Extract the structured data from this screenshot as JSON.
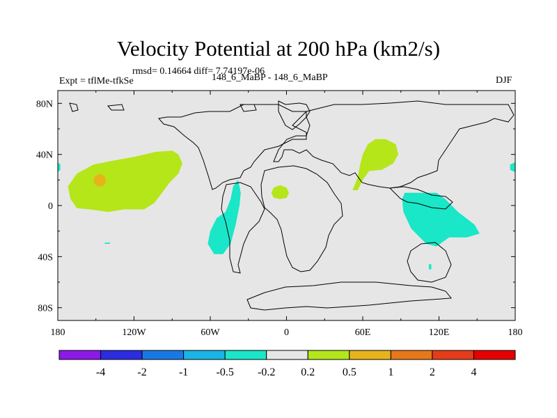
{
  "chart_data": {
    "type": "heatmap",
    "title": "Velocity Potential at 200 hPa (km2/s)",
    "stats_line": "rmsd= 0.14664  diff= 7.74197e-06",
    "left_label": "Expt = tflMe-tfkSe",
    "center_label": "148_6_MaBP - 148_6_MaBP",
    "right_label": "DJF",
    "xlim": [
      -180,
      180
    ],
    "ylim": [
      -90,
      90
    ],
    "x_ticks": [
      {
        "value": -180,
        "label": "180"
      },
      {
        "value": -120,
        "label": "120W"
      },
      {
        "value": -60,
        "label": "60W"
      },
      {
        "value": 0,
        "label": "0"
      },
      {
        "value": 60,
        "label": "60E"
      },
      {
        "value": 120,
        "label": "120E"
      },
      {
        "value": 180,
        "label": "180"
      }
    ],
    "y_ticks": [
      {
        "value": 80,
        "label": "80N"
      },
      {
        "value": 40,
        "label": "40N"
      },
      {
        "value": 0,
        "label": "0"
      },
      {
        "value": -40,
        "label": "40S"
      },
      {
        "value": -80,
        "label": "80S"
      }
    ],
    "background_color": "#e6e6e6",
    "colorbar": {
      "colors": [
        "#8c1ae6",
        "#2c2ce0",
        "#1a78e6",
        "#1ab4e6",
        "#1ae6c8",
        "#e6e6e6",
        "#b4e61a",
        "#e6b41a",
        "#e6781a",
        "#e63c1a",
        "#e60000"
      ],
      "labels": [
        "-4",
        "-2",
        "-1",
        "-0.5",
        "-0.2",
        "0.2",
        "0.5",
        "1",
        "2",
        "4"
      ]
    },
    "anomaly_regions": [
      {
        "name": "central-pacific-positive",
        "level_index": 6,
        "points": [
          [
            -170,
            5
          ],
          [
            -172,
            15
          ],
          [
            -165,
            25
          ],
          [
            -152,
            32
          ],
          [
            -137,
            35
          ],
          [
            -120,
            38
          ],
          [
            -103,
            42
          ],
          [
            -90,
            43
          ],
          [
            -85,
            40
          ],
          [
            -82,
            33
          ],
          [
            -85,
            25
          ],
          [
            -92,
            18
          ],
          [
            -98,
            10
          ],
          [
            -104,
            2
          ],
          [
            -112,
            -3
          ],
          [
            -128,
            -3
          ],
          [
            -140,
            -5
          ],
          [
            -155,
            -3
          ],
          [
            -165,
            -2
          ]
        ]
      },
      {
        "name": "central-pacific-peak",
        "level_index": 7,
        "points": [
          [
            -152,
            18
          ],
          [
            -151,
            23
          ],
          [
            -147,
            25
          ],
          [
            -143,
            23
          ],
          [
            -142,
            18
          ],
          [
            -145,
            15
          ],
          [
            -149,
            15
          ]
        ]
      },
      {
        "name": "africa-positive",
        "level_index": 6,
        "points": [
          [
            -12,
            10
          ],
          [
            -10,
            14
          ],
          [
            -5,
            16
          ],
          [
            0,
            14
          ],
          [
            2,
            10
          ],
          [
            0,
            6
          ],
          [
            -5,
            5
          ],
          [
            -10,
            6
          ]
        ]
      },
      {
        "name": "asia-positive",
        "level_index": 6,
        "points": [
          [
            52,
            12
          ],
          [
            56,
            22
          ],
          [
            58,
            32
          ],
          [
            60,
            40
          ],
          [
            64,
            48
          ],
          [
            70,
            52
          ],
          [
            78,
            52
          ],
          [
            86,
            48
          ],
          [
            88,
            40
          ],
          [
            84,
            33
          ],
          [
            75,
            28
          ],
          [
            65,
            27
          ],
          [
            60,
            20
          ],
          [
            56,
            12
          ]
        ]
      },
      {
        "name": "south-america-negative",
        "level_index": 4,
        "points": [
          [
            -38,
            20
          ],
          [
            -36,
            10
          ],
          [
            -37,
            0
          ],
          [
            -40,
            -15
          ],
          [
            -44,
            -30
          ],
          [
            -50,
            -38
          ],
          [
            -57,
            -38
          ],
          [
            -62,
            -30
          ],
          [
            -60,
            -20
          ],
          [
            -55,
            -10
          ],
          [
            -48,
            -5
          ],
          [
            -44,
            5
          ],
          [
            -42,
            15
          ]
        ]
      },
      {
        "name": "maritime-continent-negative",
        "level_index": 4,
        "points": [
          [
            93,
            10
          ],
          [
            105,
            10
          ],
          [
            118,
            10
          ],
          [
            125,
            5
          ],
          [
            135,
            -5
          ],
          [
            148,
            -15
          ],
          [
            152,
            -22
          ],
          [
            142,
            -25
          ],
          [
            128,
            -25
          ],
          [
            118,
            -32
          ],
          [
            110,
            -30
          ],
          [
            98,
            -18
          ],
          [
            92,
            -5
          ],
          [
            91,
            5
          ]
        ]
      },
      {
        "name": "dateline-negative-east",
        "level_index": 4,
        "points": [
          [
            180,
            34
          ],
          [
            176,
            32
          ],
          [
            176,
            28
          ],
          [
            180,
            26
          ]
        ]
      },
      {
        "name": "dateline-negative-west",
        "level_index": 4,
        "points": [
          [
            -180,
            34
          ],
          [
            -178,
            32
          ],
          [
            -178,
            28
          ],
          [
            -180,
            26
          ]
        ]
      },
      {
        "name": "small-negative-south-pacific",
        "level_index": 4,
        "points": [
          [
            -143,
            -29
          ],
          [
            -139,
            -29
          ],
          [
            -139,
            -30
          ],
          [
            -143,
            -30
          ]
        ]
      },
      {
        "name": "small-negative-indian-ocean",
        "level_index": 4,
        "points": [
          [
            112,
            -46
          ],
          [
            114,
            -46
          ],
          [
            114,
            -50
          ],
          [
            112,
            -50
          ]
        ]
      }
    ]
  }
}
